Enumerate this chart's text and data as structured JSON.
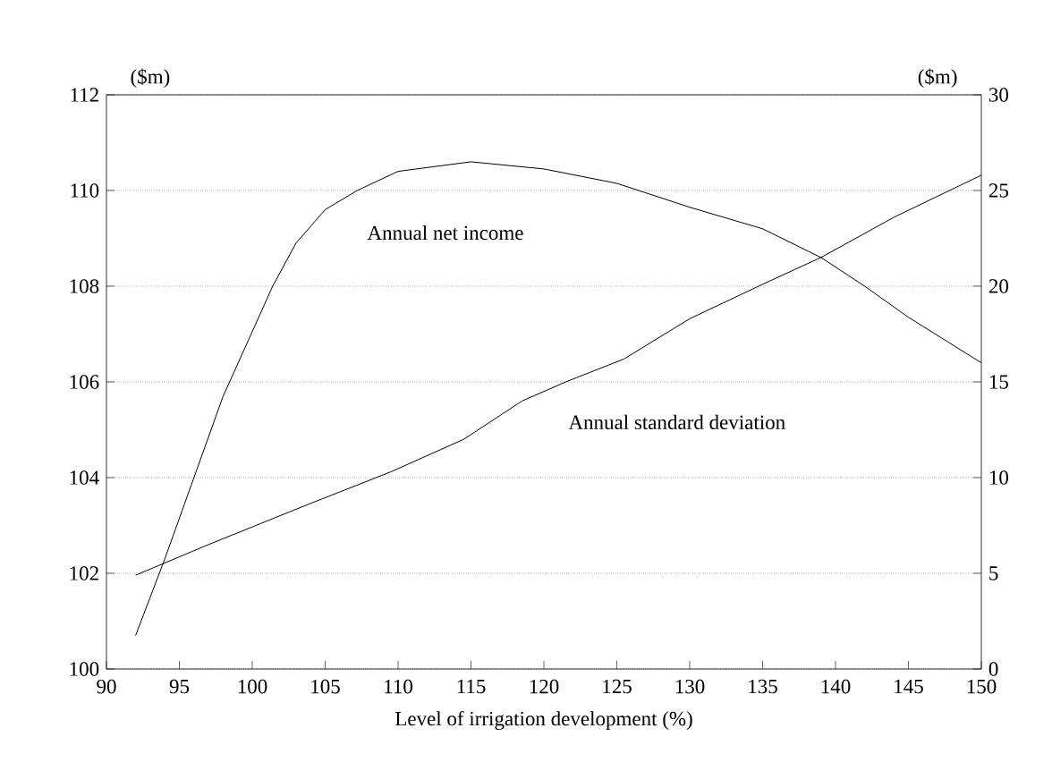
{
  "chart_data": {
    "type": "line",
    "xlabel": "Level of irrigation development (%)",
    "ylabel": "($m)",
    "y2label": "($m)",
    "xlim": [
      90,
      150
    ],
    "xticks": [
      90,
      95,
      100,
      105,
      110,
      115,
      120,
      125,
      130,
      135,
      140,
      145,
      150
    ],
    "ylim": [
      100,
      112
    ],
    "yticks": [
      100,
      102,
      104,
      106,
      108,
      110,
      112
    ],
    "y2lim": [
      0,
      30
    ],
    "y2ticks": [
      0,
      5,
      10,
      15,
      20,
      25,
      30
    ],
    "grid": "y",
    "marker": "none",
    "line_style": "solid",
    "series": [
      {
        "name": "Annual net income",
        "color": "#000000",
        "x": [
          92,
          94,
          96,
          98,
          100,
          101.4,
          103,
          105,
          107.2,
          110,
          115,
          120,
          125,
          130,
          135,
          139,
          142,
          145,
          150
        ],
        "values": [
          100.7,
          102.3,
          104.0,
          105.7,
          107.05,
          108.0,
          108.9,
          109.6,
          110.0,
          110.4,
          110.6,
          110.45,
          110.15,
          109.65,
          109.2,
          108.6,
          108.0,
          107.35,
          106.4
        ]
      },
      {
        "name": "Annual standard deviation",
        "color": "#000000",
        "axis": "y2",
        "x": [
          92,
          97,
          103.5,
          109.5,
          114.5,
          118.5,
          121.5,
          125.5,
          130,
          135,
          139,
          144,
          150
        ],
        "values": [
          4.9,
          6.5,
          8.5,
          10.3,
          12.0,
          14.0,
          15.0,
          16.2,
          18.3,
          20.1,
          21.5,
          23.6,
          25.8
        ]
      }
    ]
  }
}
